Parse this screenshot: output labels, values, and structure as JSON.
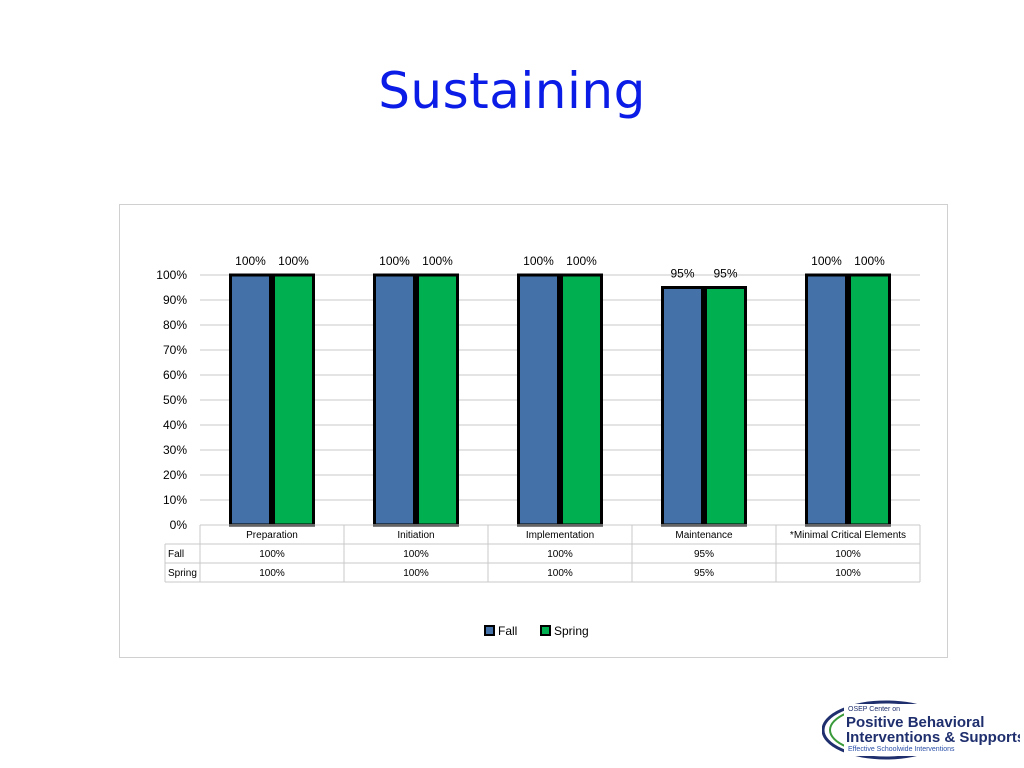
{
  "slide": {
    "title": "Sustaining"
  },
  "chart_data": {
    "type": "bar",
    "categories": [
      "Preparation",
      "Initiation",
      "Implementation",
      "Maintenance",
      "*Minimal Critical Elements"
    ],
    "series": [
      {
        "name": "Fall",
        "values": [
          100,
          100,
          100,
          95,
          100
        ],
        "labels": [
          "100%",
          "100%",
          "100%",
          "95%",
          "100%"
        ],
        "color": "#4472a8"
      },
      {
        "name": "Spring",
        "values": [
          100,
          100,
          100,
          95,
          100
        ],
        "labels": [
          "100%",
          "100%",
          "100%",
          "95%",
          "100%"
        ],
        "color": "#00b050"
      }
    ],
    "ylim": [
      0,
      100
    ],
    "yticks": [
      "0%",
      "10%",
      "20%",
      "30%",
      "40%",
      "50%",
      "60%",
      "70%",
      "80%",
      "90%",
      "100%"
    ],
    "grid": true,
    "legend": "bottom",
    "data_table": true,
    "bar_outline_color": "#000000"
  },
  "logo": {
    "line1": "OSEP Center on",
    "line2": "Positive Behavioral",
    "line3": "Interventions & Supports",
    "line4": "Effective Schoolwide Interventions",
    "colors": {
      "navy": "#1f2f6e",
      "green": "#3a9a3a",
      "blue": "#2a4fa8"
    }
  }
}
